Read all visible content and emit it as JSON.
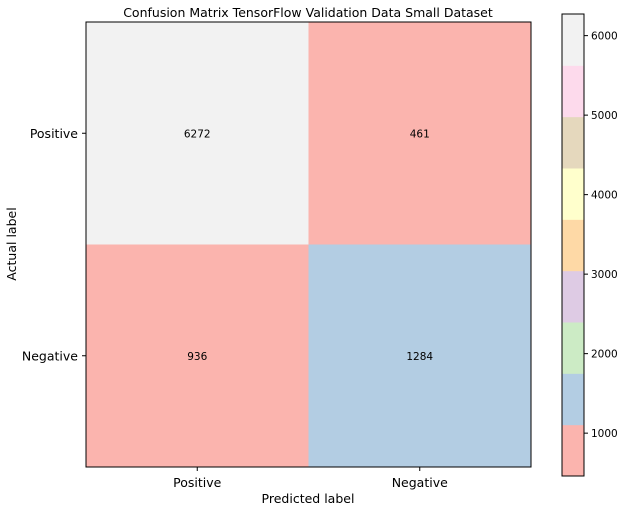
{
  "chart_data": {
    "type": "heatmap",
    "title": "Confusion Matrix TensorFlow Validation Data Small Dataset",
    "xlabel": "Predicted label",
    "ylabel": "Actual label",
    "x_categories": [
      "Positive",
      "Negative"
    ],
    "y_categories": [
      "Positive",
      "Negative"
    ],
    "values": [
      [
        6272,
        461
      ],
      [
        936,
        1284
      ]
    ],
    "colormap": "Pastel1",
    "colorbar": {
      "min": 461,
      "max": 6272,
      "ticks": [
        1000,
        2000,
        3000,
        4000,
        5000,
        6000
      ],
      "colors": [
        "#fbb4ae",
        "#b3cde3",
        "#ccebc5",
        "#decbe4",
        "#fed9a6",
        "#ffffcc",
        "#e5d8bd",
        "#fddaec",
        "#f2f2f2"
      ]
    }
  }
}
